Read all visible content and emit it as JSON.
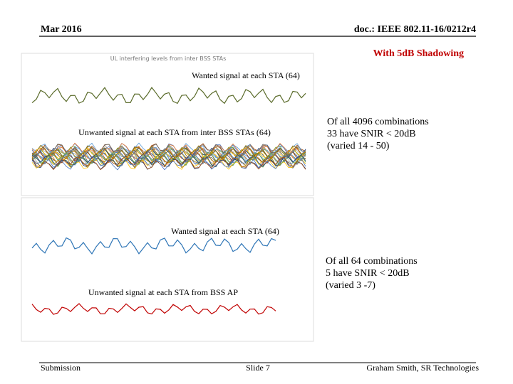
{
  "header": {
    "date": "Mar 2016",
    "doc": "doc.: IEEE 802.11-16/0212r4"
  },
  "shadowing_note": "With 5dB Shadowing",
  "figures": [
    {
      "image_title": "UL interfering levels from inter BSS STAs",
      "wanted_label": "Wanted signal at each STA (64)",
      "unwanted_label": "Unwanted signal at each STA  from inter BSS STAs (64)",
      "note": [
        "Of all 4096 combinations",
        "33 have SNIR < 20dB",
        "(varied 14 - 50)"
      ]
    },
    {
      "wanted_label": "Wanted signal at each STA (64)",
      "unwanted_label": "Unwanted signal at each STA  from BSS AP",
      "note": [
        "Of all 64 combinations",
        "5 have SNIR < 20dB",
        "(varied 3 -7)"
      ]
    }
  ],
  "footer": {
    "left": "Submission",
    "center": "Slide 7",
    "right": "Graham Smith, SR Technologies"
  }
}
